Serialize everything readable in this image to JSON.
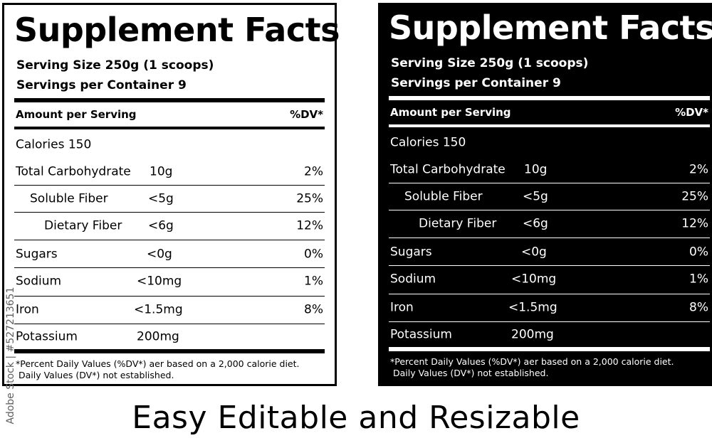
{
  "label": {
    "title": "Supplement Facts",
    "serving_size": "Serving Size 250g  (1 scoops)",
    "servings_per_container": "Servings per Container   9",
    "amount_header": "Amount per Serving",
    "dv_header": "%DV*",
    "calories": "Calories  150",
    "rows": [
      {
        "name": "Total Carbohydrate",
        "amount": "10g",
        "dv": "2%"
      },
      {
        "name": "Soluble Fiber",
        "amount": "<5g",
        "dv": "25%"
      },
      {
        "name": "Dietary Fiber",
        "amount": "<6g",
        "dv": "12%"
      },
      {
        "name": "Sugars",
        "amount": "<0g",
        "dv": "0%"
      },
      {
        "name": "Sodium",
        "amount": "<10mg",
        "dv": "1%"
      },
      {
        "name": "Iron",
        "amount": "<1.5mg",
        "dv": "8%"
      },
      {
        "name": "Potassium",
        "amount": "200mg",
        "dv": ""
      }
    ],
    "footnote_1": "*Percent  Daily Values (%DV*) aer based on a 2,000 calorie diet.",
    "footnote_2": " Daily Values (DV*) not established."
  },
  "tagline": "Easy Editable and Resizable",
  "watermark": "Adobe Stock | #527213651",
  "colors": {
    "light_bg": "#ffffff",
    "dark_bg": "#000000"
  }
}
